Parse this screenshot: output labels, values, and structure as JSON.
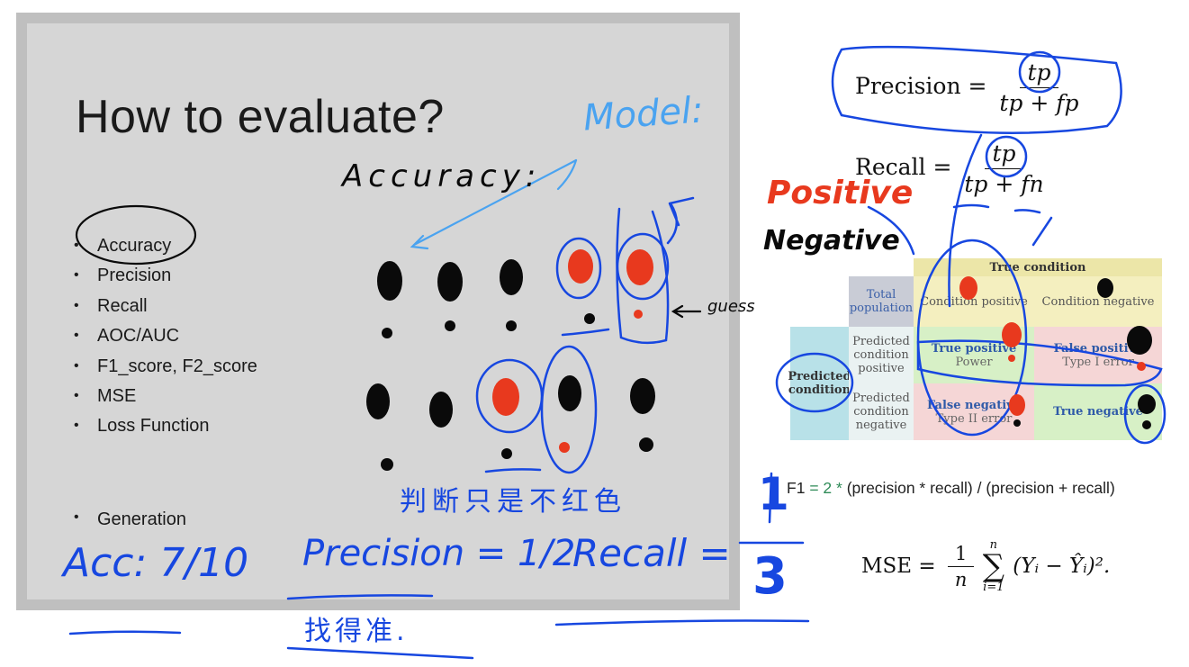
{
  "slide": {
    "title": "How to evaluate?",
    "bullets": [
      "Accuracy",
      "Precision",
      "Recall",
      "AOC/AUC",
      "F1_score, F2_score",
      "MSE",
      "Loss Function"
    ],
    "last_bullet": "Generation"
  },
  "annotations": {
    "model": "Model:",
    "accuracy": "Accuracy:",
    "guess": "guess",
    "chinese_note": "判断只是不红色",
    "acc_eq": "Acc: 7/10",
    "precision_eq": "Precision = 1/2",
    "recall_eq": "Recall =",
    "recall_num": "1",
    "recall_den": "3",
    "chinese_under": "找得准.",
    "positive": "Positive",
    "negative": "Negative"
  },
  "formulas": {
    "precision": {
      "label": "Precision =",
      "num": "tp",
      "den": "tp + fp"
    },
    "recall": {
      "label": "Recall =",
      "num": "tp",
      "den": "tp + fn"
    },
    "f1": {
      "f1": "F1",
      "eq": "= 2 *",
      "rest": "(precision * recall) / (precision + recall)"
    },
    "mse": {
      "lhs": "MSE =",
      "frac_num": "1",
      "frac_den": "n",
      "sum_top": "n",
      "sum_bottom": "i=1",
      "body": "(Yᵢ − Ŷᵢ)²."
    }
  },
  "confusion_matrix": {
    "header": "True condition",
    "total": "Total population",
    "cond_pos": "Condition positive",
    "cond_neg": "Condition negative",
    "pred": "Predicted condition",
    "pred_pos": "Predicted condition positive",
    "pred_neg": "Predicted condition negative",
    "tp": "True positive",
    "tp_sub": "Power",
    "fp": "False positive",
    "fp_sub": "Type I error",
    "fn": "False negative",
    "fn_sub": "Type II error",
    "tn": "True negative",
    "colors": {
      "header": "#ece6a8",
      "total": "#c9ccd6",
      "pred": "#b8e1e8",
      "tp": "#d7f0c6",
      "fp": "#f5d6d6",
      "fn": "#f5d6d6",
      "tn": "#d7f0c6"
    }
  },
  "ink_colors": {
    "blue": "#1747e0",
    "light_blue": "#4aa3f0",
    "red": "#e8391e",
    "black": "#0a0a0a"
  }
}
